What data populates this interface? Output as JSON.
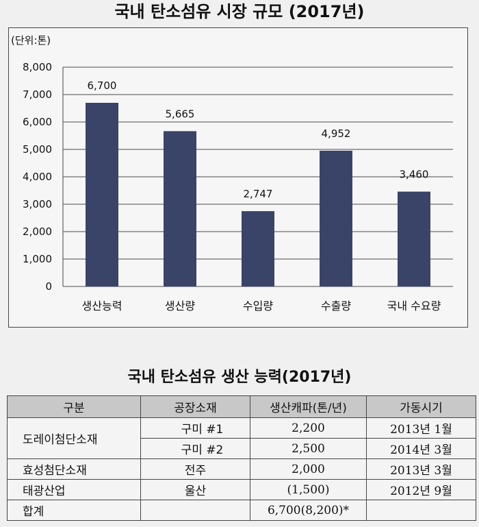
{
  "chart_title": "국내 탄소섬유 시장 규모 (2017년)",
  "chart_data": {
    "type": "bar",
    "title": "국내 탄소섬유 시장 규모 (2017년)",
    "unit_label": "(단위:톤)",
    "categories": [
      "생산능력",
      "생산량",
      "수입량",
      "수출량",
      "국내 수요량"
    ],
    "values": [
      6700,
      5665,
      2747,
      4952,
      3460
    ],
    "value_labels": [
      "6,700",
      "5,665",
      "2,747",
      "4,952",
      "3,460"
    ],
    "y_ticks": [
      "0",
      "1,000",
      "2,000",
      "3,000",
      "4,000",
      "5,000",
      "6,000",
      "7,000",
      "8,000"
    ],
    "ylim": [
      0,
      8000
    ],
    "grid": true,
    "bar_color": "#3a4468"
  },
  "table_title": "국내 탄소섬유 생산 능력(2017년)",
  "table": {
    "headers": [
      "구분",
      "공장소재",
      "생산캐파(톤/년)",
      "가동시기"
    ],
    "rows": [
      {
        "company": "도레이첨단소재",
        "location": "구미 #1",
        "capacity": "2,200",
        "start": "2013년 1월"
      },
      {
        "company": "",
        "location": "구미 #2",
        "capacity": "2,500",
        "start": "2014년 3월"
      },
      {
        "company": "효성첨단소재",
        "location": "전주",
        "capacity": "2,000",
        "start": "2013년 3월"
      },
      {
        "company": "태광산업",
        "location": "울산",
        "capacity": "(1,500)",
        "start": "2012년 9월"
      },
      {
        "company": "합계",
        "location": "",
        "capacity": "6,700(8,200)*",
        "start": ""
      }
    ]
  }
}
